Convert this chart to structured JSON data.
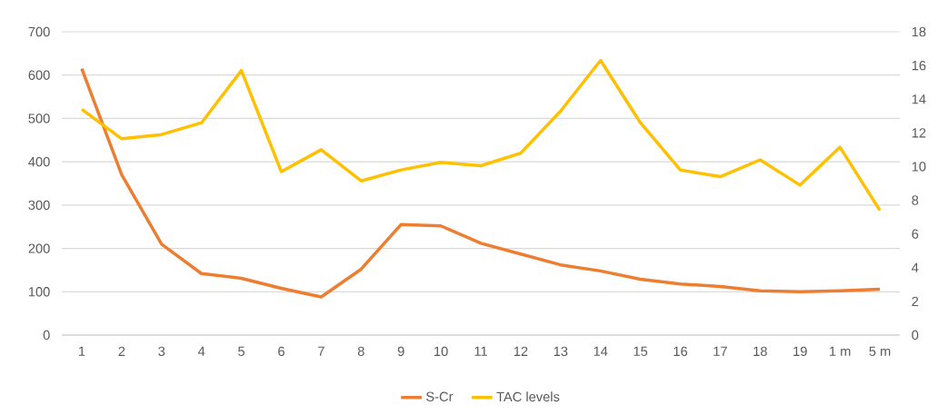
{
  "chart_data": {
    "type": "line",
    "categories": [
      "1",
      "2",
      "3",
      "4",
      "5",
      "6",
      "7",
      "8",
      "9",
      "10",
      "11",
      "12",
      "13",
      "14",
      "15",
      "16",
      "17",
      "18",
      "19",
      "1 m",
      "5 m"
    ],
    "series": [
      {
        "name": "S-Cr",
        "color": "#ed7d31",
        "values": [
          615,
          370,
          210,
          142,
          131,
          108,
          88,
          152,
          255,
          252,
          212,
          187,
          162,
          148,
          129,
          118,
          112,
          102,
          100,
          102,
          106
        ]
      },
      {
        "name": "TAC levels",
        "color": "#ffc000",
        "axis": "y2",
        "values": [
          13.4,
          11.65,
          11.9,
          12.6,
          15.7,
          9.7,
          11.0,
          9.15,
          9.8,
          10.25,
          10.05,
          10.8,
          13.3,
          16.3,
          12.6,
          9.8,
          9.4,
          10.4,
          8.9,
          11.15,
          7.4
        ]
      }
    ],
    "ylim": [
      0,
      700
    ],
    "yticks": [
      0,
      100,
      200,
      300,
      400,
      500,
      600,
      700
    ],
    "y2lim": [
      0,
      18
    ],
    "y2ticks": [
      0,
      2,
      4,
      6,
      8,
      10,
      12,
      14,
      16,
      18
    ],
    "grid": "y",
    "legend": "bottom",
    "marker": "none",
    "line_style": "solid"
  }
}
